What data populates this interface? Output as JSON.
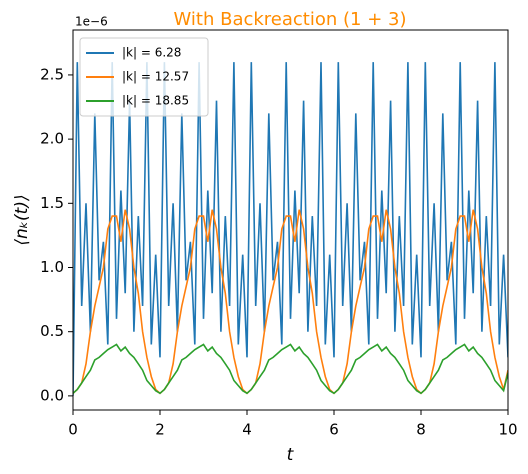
{
  "chart_data": {
    "type": "line",
    "title": "With Backreaction (1 + 3)",
    "xlabel": "t",
    "ylabel": "⟨nₖ(t)⟩",
    "offset_text": "1e−6",
    "x": [
      0,
      0.1,
      0.2,
      0.3,
      0.4,
      0.5,
      0.6,
      0.7,
      0.8,
      0.9,
      1,
      1.1,
      1.2,
      1.3,
      1.4,
      1.5,
      1.6,
      1.7,
      1.8,
      1.9,
      2,
      2.1,
      2.2,
      2.3,
      2.4,
      2.5,
      2.6,
      2.7,
      2.8,
      2.9,
      3,
      3.1,
      3.2,
      3.3,
      3.4,
      3.5,
      3.6,
      3.7,
      3.8,
      3.9,
      4,
      4.1,
      4.2,
      4.3,
      4.4,
      4.5,
      4.6,
      4.7,
      4.8,
      4.9,
      5,
      5.1,
      5.2,
      5.3,
      5.4,
      5.5,
      5.6,
      5.7,
      5.8,
      5.9,
      6,
      6.1,
      6.2,
      6.3,
      6.4,
      6.5,
      6.6,
      6.7,
      6.8,
      6.9,
      7,
      7.1,
      7.2,
      7.3,
      7.4,
      7.5,
      7.6,
      7.7,
      7.8,
      7.9,
      8,
      8.1,
      8.2,
      8.3,
      8.4,
      8.5,
      8.6,
      8.7,
      8.8,
      8.9,
      9,
      9.1,
      9.2,
      9.3,
      9.4,
      9.5,
      9.6,
      9.7,
      9.8,
      9.9,
      10
    ],
    "series": [
      {
        "name": "|k| = 6.28",
        "color": "#1f77b4",
        "values": [
          0.0,
          2.6,
          0.7,
          1.5,
          0.5,
          2.2,
          0.9,
          1.2,
          0.4,
          2.6,
          0.6,
          1.6,
          0.8,
          2.3,
          0.5,
          1.4,
          0.7,
          2.6,
          0.4,
          1.1,
          0.3,
          2.6,
          0.7,
          1.5,
          0.5,
          2.2,
          0.9,
          1.2,
          0.4,
          2.6,
          0.6,
          1.6,
          0.8,
          2.3,
          0.5,
          1.4,
          0.7,
          2.6,
          0.4,
          1.1,
          0.3,
          2.6,
          0.7,
          1.5,
          0.5,
          2.2,
          0.9,
          1.2,
          0.4,
          2.6,
          0.6,
          1.6,
          0.8,
          2.3,
          0.5,
          1.4,
          0.7,
          2.6,
          0.4,
          1.1,
          0.3,
          2.6,
          0.7,
          1.5,
          0.5,
          2.2,
          0.9,
          1.2,
          0.4,
          2.6,
          0.6,
          1.6,
          0.8,
          2.3,
          0.5,
          1.4,
          0.7,
          2.6,
          0.4,
          1.1,
          0.3,
          2.6,
          0.7,
          1.5,
          0.5,
          2.2,
          0.9,
          1.2,
          0.4,
          2.6,
          0.6,
          1.6,
          0.8,
          2.3,
          0.5,
          1.4,
          0.7,
          2.6,
          0.4,
          1.1,
          0.3
        ]
      },
      {
        "name": "|k| = 12.57",
        "color": "#ff7f0e",
        "values": [
          0.02,
          0.05,
          0.1,
          0.25,
          0.5,
          0.7,
          0.85,
          1.0,
          1.3,
          1.4,
          1.4,
          1.2,
          1.45,
          1.3,
          1.0,
          0.8,
          0.5,
          0.3,
          0.15,
          0.05,
          0.02,
          0.05,
          0.1,
          0.25,
          0.5,
          0.7,
          0.85,
          1.0,
          1.3,
          1.4,
          1.4,
          1.2,
          1.45,
          1.3,
          1.0,
          0.8,
          0.5,
          0.3,
          0.15,
          0.05,
          0.02,
          0.05,
          0.1,
          0.25,
          0.5,
          0.7,
          0.85,
          1.0,
          1.3,
          1.4,
          1.4,
          1.2,
          1.45,
          1.3,
          1.0,
          0.8,
          0.5,
          0.3,
          0.15,
          0.05,
          0.02,
          0.05,
          0.1,
          0.25,
          0.5,
          0.7,
          0.85,
          1.0,
          1.3,
          1.4,
          1.4,
          1.2,
          1.45,
          1.3,
          1.0,
          0.8,
          0.5,
          0.3,
          0.15,
          0.05,
          0.02,
          0.05,
          0.1,
          0.25,
          0.5,
          0.7,
          0.85,
          1.0,
          1.3,
          1.4,
          1.4,
          1.2,
          1.45,
          1.3,
          1.0,
          0.8,
          0.5,
          0.3,
          0.15,
          0.05,
          0.2
        ]
      },
      {
        "name": "|k| = 18.85",
        "color": "#2ca02c",
        "values": [
          0.02,
          0.05,
          0.1,
          0.15,
          0.2,
          0.28,
          0.3,
          0.33,
          0.36,
          0.38,
          0.4,
          0.35,
          0.38,
          0.33,
          0.3,
          0.25,
          0.2,
          0.12,
          0.08,
          0.04,
          0.02,
          0.05,
          0.1,
          0.15,
          0.2,
          0.28,
          0.3,
          0.33,
          0.36,
          0.38,
          0.4,
          0.35,
          0.38,
          0.33,
          0.3,
          0.25,
          0.2,
          0.12,
          0.08,
          0.04,
          0.02,
          0.05,
          0.1,
          0.15,
          0.2,
          0.28,
          0.3,
          0.33,
          0.36,
          0.38,
          0.4,
          0.35,
          0.38,
          0.33,
          0.3,
          0.25,
          0.2,
          0.12,
          0.08,
          0.04,
          0.02,
          0.05,
          0.1,
          0.15,
          0.2,
          0.28,
          0.3,
          0.33,
          0.36,
          0.38,
          0.4,
          0.35,
          0.38,
          0.33,
          0.3,
          0.25,
          0.2,
          0.12,
          0.08,
          0.04,
          0.02,
          0.05,
          0.1,
          0.15,
          0.2,
          0.28,
          0.3,
          0.33,
          0.36,
          0.38,
          0.4,
          0.35,
          0.38,
          0.33,
          0.3,
          0.25,
          0.2,
          0.12,
          0.08,
          0.04,
          0.18
        ]
      }
    ],
    "xlim": [
      0,
      10
    ],
    "xticks": [
      0,
      2,
      4,
      6,
      8,
      10
    ],
    "ylim": [
      -0.11,
      2.85
    ],
    "yticks": [
      {
        "value": 0,
        "label": "0.0"
      },
      0.5,
      {
        "value": 1,
        "label": "1.0"
      },
      1.5,
      {
        "value": 2,
        "label": "2.0"
      },
      2.5
    ],
    "legend": "upper left",
    "title_color": "#ff8c00"
  }
}
